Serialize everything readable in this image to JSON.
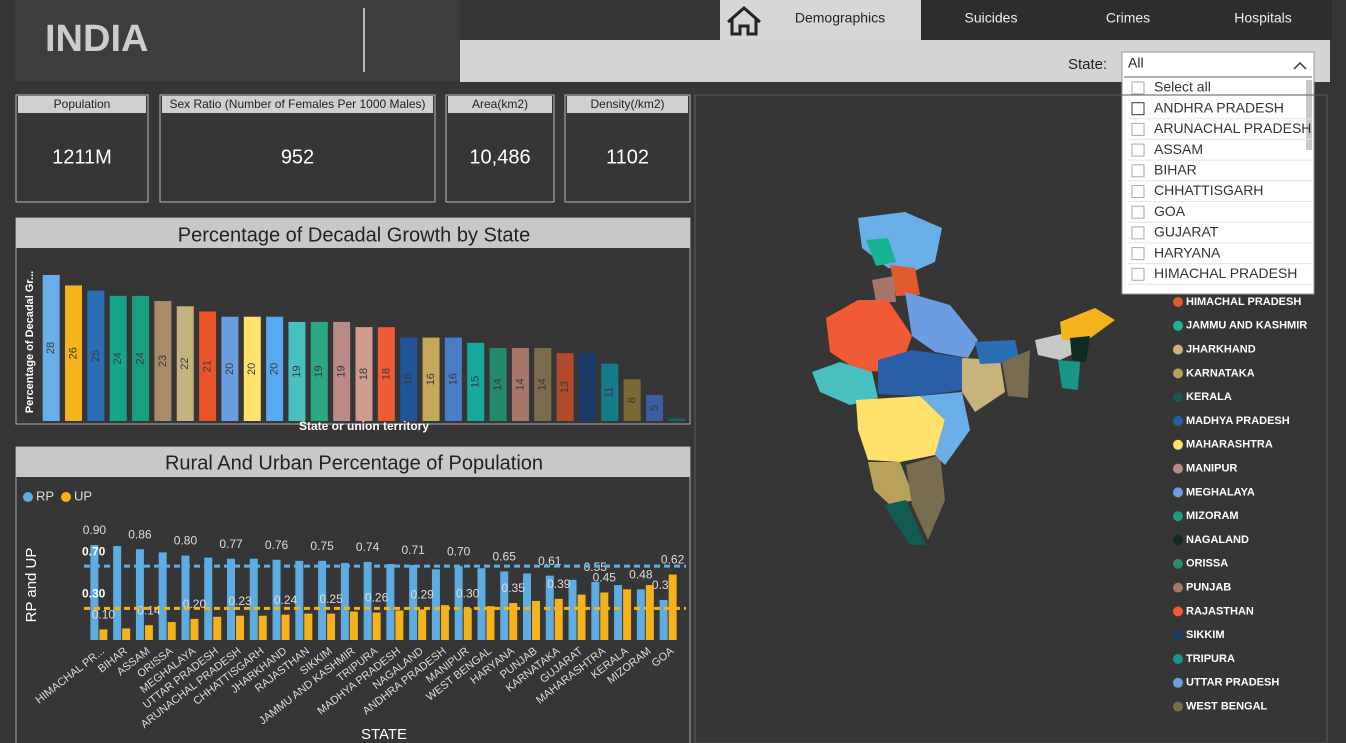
{
  "header": {
    "title": "INDIA"
  },
  "tabs": [
    "Demographics",
    "Suicides",
    "Crimes",
    "Hospitals"
  ],
  "filter": {
    "label": "State:",
    "selected": "All",
    "options": [
      "Select all",
      "ANDHRA PRADESH",
      "ARUNACHAL PRADESH",
      "ASSAM",
      "BIHAR",
      "CHHATTISGARH",
      "GOA",
      "GUJARAT",
      "HARYANA",
      "HIMACHAL PRADESH"
    ]
  },
  "kpis": [
    {
      "label": "Population",
      "value": "1211M"
    },
    {
      "label": "Sex Ratio (Number of Females Per 1000 Males)",
      "value": 952
    },
    {
      "label": "Area(km2)",
      "value": "10,486"
    },
    {
      "label": "Density(/km2)",
      "value": 1102
    }
  ],
  "growth_chart": {
    "type": "bar",
    "title": "Percentage of Decadal Growth by State",
    "y_label": "Percentage of Decadal Gr...",
    "x_label": "State or union territory",
    "values": [
      28,
      26,
      25,
      24,
      24,
      23,
      22,
      21,
      20,
      20,
      20,
      19,
      19,
      19,
      18,
      18,
      16,
      16,
      16,
      15,
      14,
      14,
      14,
      13,
      13,
      11,
      8,
      5,
      0.5
    ],
    "colors": [
      "#6aaee8",
      "#f5b41c",
      "#2a6fb5",
      "#13a58a",
      "#1a9e82",
      "#a78c6c",
      "#c4b37e",
      "#e8532a",
      "#6b9de0",
      "#fde16a",
      "#59a9f0",
      "#49c0c0",
      "#29a882",
      "#b98a86",
      "#d09a8e",
      "#f05a36",
      "#1f5497",
      "#c4a95a",
      "#4a7cc8",
      "#18a99e",
      "#248a6e",
      "#a8756a",
      "#7a6c4e",
      "#b04a2a",
      "#1c3a6a",
      "#157a8a",
      "#7a6a38",
      "#3a5ea0",
      "#0e6a5e"
    ]
  },
  "rural_urban_chart": {
    "type": "bar",
    "title": "Rural And Urban Percentage of Population",
    "y_label": "RP and UP",
    "x_label": "STATE",
    "categories": [
      "HIMACHAL PR...",
      "BIHAR",
      "ASSAM",
      "ORISSA",
      "MEGHALAYA",
      "UTTAR PRADESH",
      "ARUNACHAL PRADESH",
      "CHHATTISGARH",
      "JHARKHAND",
      "RAJASTHAN",
      "SIKKIM",
      "JAMMU AND KASHMIR",
      "TRIPURA",
      "MADHYA PRADESH",
      "NAGALAND",
      "ANDHRA PRADESH",
      "MANIPUR",
      "WEST BENGAL",
      "HARYANA",
      "PUNJAB",
      "KARNATAKA",
      "GUJARAT",
      "MAHARASHTRA",
      "KERALA",
      "MIZORAM",
      "GOA"
    ],
    "series": [
      {
        "name": "RP",
        "color": "#5dade2",
        "values": [
          0.9,
          0.89,
          0.86,
          0.83,
          0.8,
          0.78,
          0.77,
          0.77,
          0.76,
          0.75,
          0.75,
          0.73,
          0.74,
          0.72,
          0.71,
          0.67,
          0.7,
          0.68,
          0.65,
          0.63,
          0.61,
          0.57,
          0.55,
          0.52,
          0.48,
          0.38
        ],
        "value_labels": [
          "0.90",
          null,
          "0.86",
          null,
          "0.80",
          null,
          "0.77",
          null,
          "0.76",
          null,
          "0.75",
          null,
          "0.74",
          null,
          "0.71",
          null,
          "0.70",
          null,
          "0.65",
          null,
          "0.61",
          null,
          "0.55",
          null,
          "0.48",
          "0.38"
        ]
      },
      {
        "name": "UP",
        "color": "#f5b21b",
        "values": [
          0.1,
          0.11,
          0.14,
          0.17,
          0.2,
          0.22,
          0.23,
          0.23,
          0.24,
          0.25,
          0.25,
          0.27,
          0.26,
          0.28,
          0.29,
          0.33,
          0.3,
          0.32,
          0.35,
          0.37,
          0.39,
          0.43,
          0.45,
          0.48,
          0.52,
          0.62
        ],
        "value_labels": [
          "0.10",
          null,
          "0.14",
          null,
          "0.20",
          null,
          "0.23",
          null,
          "0.24",
          null,
          "0.25",
          null,
          "0.26",
          null,
          "0.29",
          null,
          "0.30",
          null,
          "0.35",
          null,
          "0.39",
          null,
          "0.45",
          null,
          null,
          "0.62"
        ]
      }
    ],
    "reference_lines": [
      {
        "value": 0.7,
        "label": "0.70",
        "color": "#5dade2"
      },
      {
        "value": 0.3,
        "label": "0.30",
        "color": "#f5b21b"
      }
    ]
  },
  "map_legend": {
    "entries": [
      {
        "name": "HIMACHAL PRADESH",
        "color": "#e05a2b"
      },
      {
        "name": "JAMMU AND KASHMIR",
        "color": "#19b394"
      },
      {
        "name": "JHARKHAND",
        "color": "#c9b27c"
      },
      {
        "name": "KARNATAKA",
        "color": "#b8a25a"
      },
      {
        "name": "KERALA",
        "color": "#135a52"
      },
      {
        "name": "MADHYA PRADESH",
        "color": "#2a5ea8"
      },
      {
        "name": "MAHARASHTRA",
        "color": "#fde16a"
      },
      {
        "name": "MANIPUR",
        "color": "#b98a86"
      },
      {
        "name": "MEGHALAYA",
        "color": "#6b9de0"
      },
      {
        "name": "MIZORAM",
        "color": "#1a9e82"
      },
      {
        "name": "NAGALAND",
        "color": "#0f2a22"
      },
      {
        "name": "ORISSA",
        "color": "#2a8a6a"
      },
      {
        "name": "PUNJAB",
        "color": "#a8756a"
      },
      {
        "name": "RAJASTHAN",
        "color": "#f05a36"
      },
      {
        "name": "SIKKIM",
        "color": "#1c3a6a"
      },
      {
        "name": "TRIPURA",
        "color": "#19968a"
      },
      {
        "name": "UTTAR PRADESH",
        "color": "#6b9de0"
      },
      {
        "name": "WEST BENGAL",
        "color": "#7a6c4e"
      }
    ]
  }
}
